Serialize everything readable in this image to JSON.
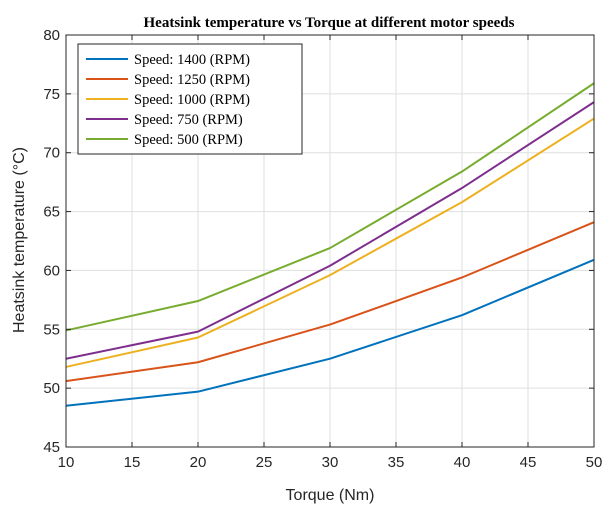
{
  "chart_data": {
    "type": "line",
    "title": "Heatsink temperature vs Torque at different motor speeds",
    "xlabel": "Torque (Nm)",
    "ylabel": "Heatsink temperature (°C)",
    "x": [
      10,
      20,
      30,
      40,
      50
    ],
    "xlim": [
      10,
      50
    ],
    "ylim": [
      45,
      80
    ],
    "xticks": [
      "10",
      "15",
      "20",
      "25",
      "30",
      "35",
      "40",
      "45",
      "50"
    ],
    "yticks": [
      "45",
      "50",
      "55",
      "60",
      "65",
      "70",
      "75",
      "80"
    ],
    "grid": true,
    "legend_position": "top-left",
    "series": [
      {
        "name": "Speed: 1400 (RPM)",
        "color": "#0072BD",
        "values": [
          48.5,
          49.7,
          52.5,
          56.2,
          60.9
        ]
      },
      {
        "name": "Speed: 1250 (RPM)",
        "color": "#D95319",
        "values": [
          50.6,
          52.2,
          55.4,
          59.4,
          64.1
        ]
      },
      {
        "name": "Speed: 1000 (RPM)",
        "color": "#EDB120",
        "values": [
          51.8,
          54.3,
          59.6,
          65.8,
          72.9
        ]
      },
      {
        "name": "Speed: 750 (RPM)",
        "color": "#7E2F8E",
        "values": [
          52.5,
          54.8,
          60.4,
          67.0,
          74.3
        ]
      },
      {
        "name": "Speed: 500 (RPM)",
        "color": "#77AC30",
        "values": [
          54.9,
          57.4,
          61.9,
          68.4,
          75.9
        ]
      }
    ]
  }
}
